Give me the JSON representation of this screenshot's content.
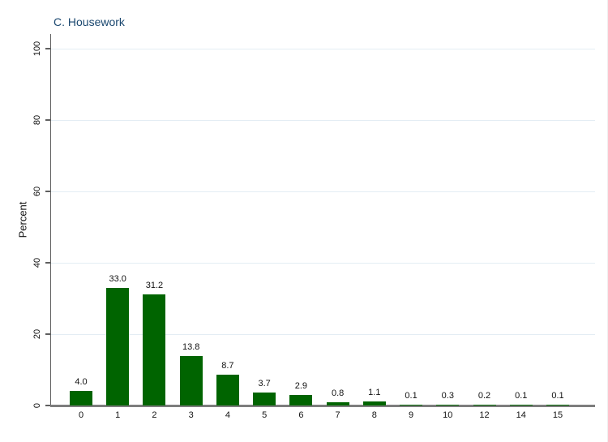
{
  "chart_data": {
    "type": "bar",
    "title": "C. Housework",
    "xlabel": "",
    "ylabel": "Percent",
    "categories": [
      "0",
      "1",
      "2",
      "3",
      "4",
      "5",
      "6",
      "7",
      "8",
      "9",
      "10",
      "12",
      "14",
      "15"
    ],
    "values": [
      4.0,
      33.0,
      31.2,
      13.8,
      8.7,
      3.7,
      2.9,
      0.8,
      1.1,
      0.1,
      0.3,
      0.2,
      0.1,
      0.1
    ],
    "bar_labels": [
      "4.0",
      "33.0",
      "31.2",
      "13.8",
      "8.7",
      "3.7",
      "2.9",
      "0.8",
      "1.1",
      "0.1",
      "0.3",
      "0.2",
      "0.1",
      "0.1"
    ],
    "ylim": [
      0,
      100
    ],
    "yticks": [
      0,
      20,
      40,
      60,
      80,
      100
    ],
    "grid": true,
    "legend": "none",
    "colors": {
      "bar": "#006400",
      "title": "#1a476f",
      "grid": "#e4edf4",
      "axis": "#5f5f5f",
      "text": "#111111"
    }
  }
}
